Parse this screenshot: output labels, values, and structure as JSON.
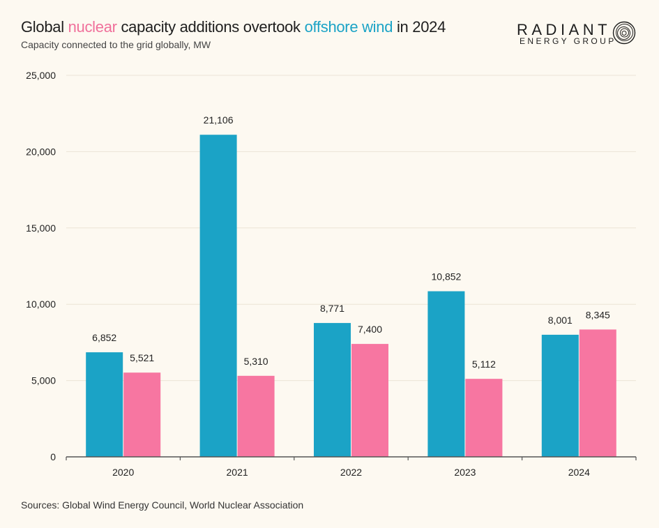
{
  "header": {
    "title_parts": [
      {
        "text": "Global ",
        "color": "#1e1e1e"
      },
      {
        "text": "nuclear",
        "color": "#f0709b"
      },
      {
        "text": " capacity additions overtook ",
        "color": "#1e1e1e"
      },
      {
        "text": "offshore wind",
        "color": "#1ba3c6"
      },
      {
        "text": " in 2024",
        "color": "#1e1e1e"
      }
    ],
    "subtitle": "Capacity connected to the grid globally, MW"
  },
  "logo": {
    "word": "RADIANT",
    "sub": "ENERGY GROUP",
    "icon": "concentric-rings-icon"
  },
  "footer": {
    "source": "Sources: Global Wind Energy Council, World Nuclear Association"
  },
  "colors": {
    "wind": "#1ba3c6",
    "nuclear": "#f776a1",
    "grid": "#ebe4d6",
    "axis": "#555555",
    "background": "#fdf9f1"
  },
  "chart_data": {
    "type": "bar",
    "title": "Global nuclear capacity additions overtook offshore wind in 2024",
    "subtitle": "Capacity connected to the grid globally, MW",
    "categories": [
      "2020",
      "2021",
      "2022",
      "2023",
      "2024"
    ],
    "series": [
      {
        "key": "wind",
        "values": [
          6852,
          21106,
          8771,
          10852,
          8001
        ],
        "labels": [
          "6,852",
          "21,106",
          "8,771",
          "10,852",
          "8,001"
        ]
      },
      {
        "key": "nuclear",
        "values": [
          5521,
          5310,
          7400,
          5112,
          8345
        ],
        "labels": [
          "5,521",
          "5,310",
          "7,400",
          "5,112",
          "8,345"
        ]
      }
    ],
    "ylim": [
      0,
      25000
    ],
    "yticks": [
      0,
      5000,
      10000,
      15000,
      20000,
      25000
    ],
    "ytick_labels": [
      "0",
      "5,000",
      "10,000",
      "15,000",
      "20,000",
      "25,000"
    ],
    "grid": true,
    "legend": "in title"
  }
}
